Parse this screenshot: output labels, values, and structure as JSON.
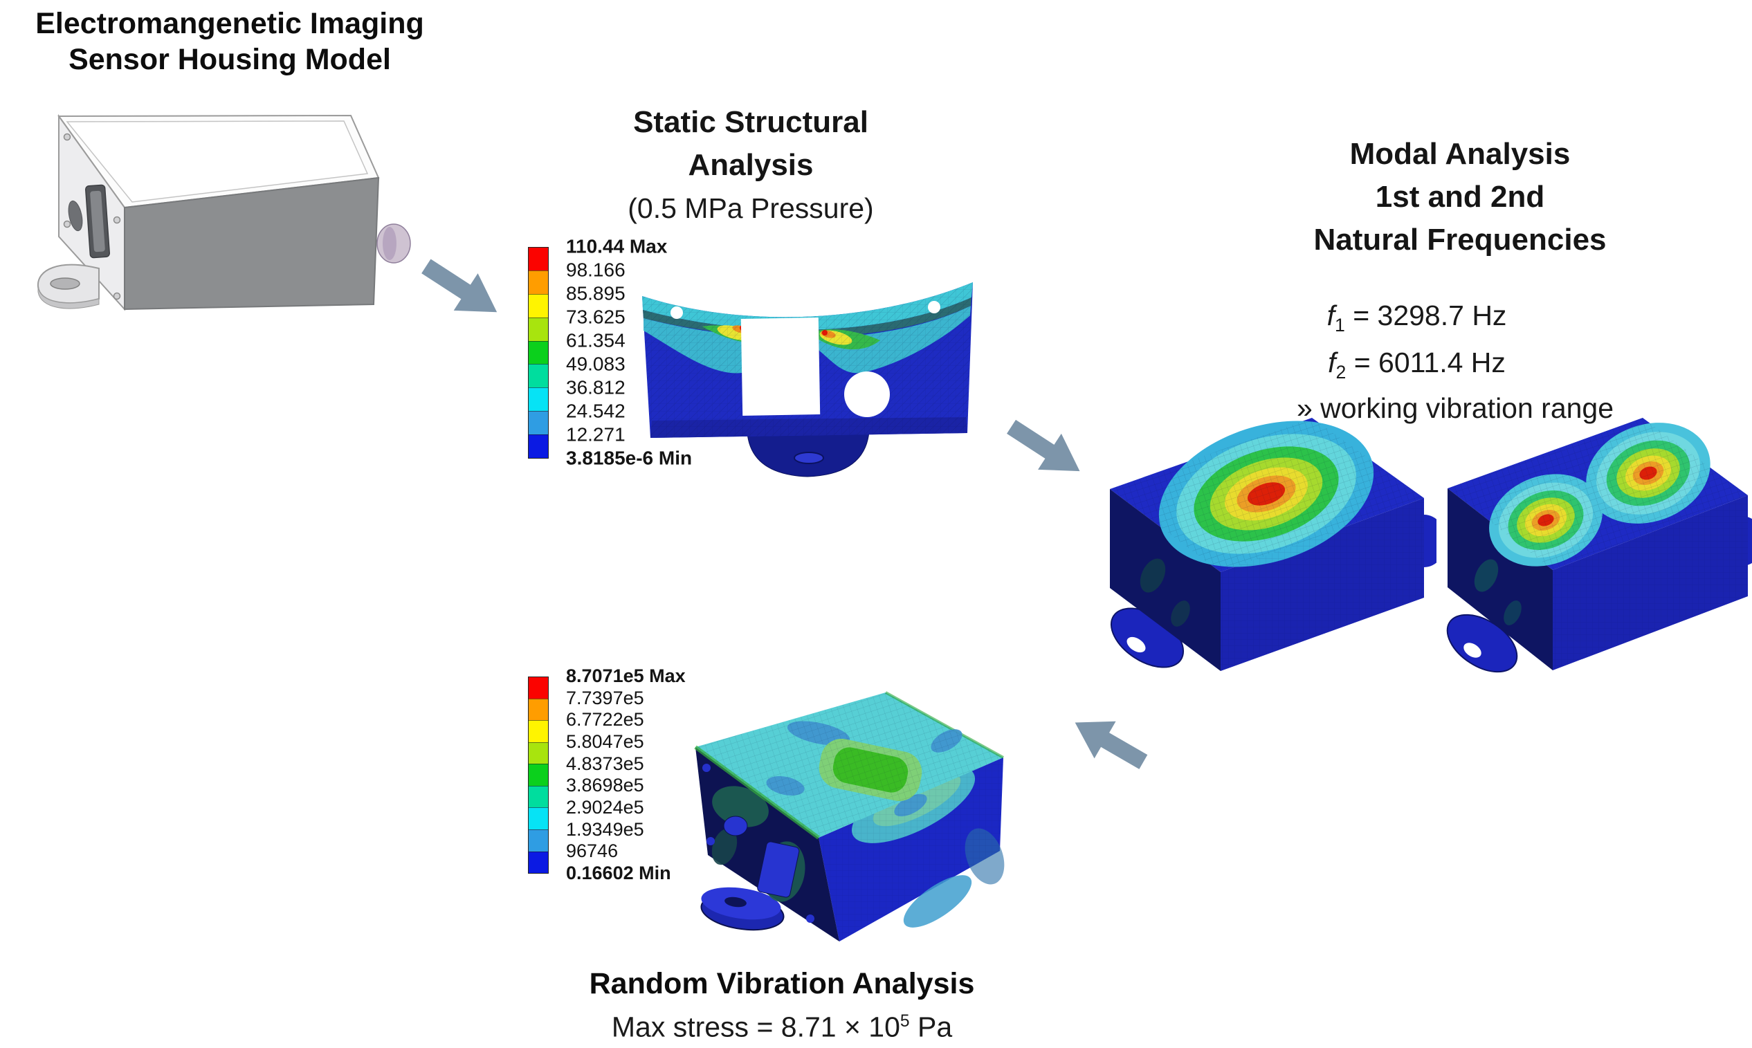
{
  "figure": {
    "model_title": [
      "Electromangenetic Imaging",
      "Sensor Housing Model"
    ]
  },
  "static_analysis": {
    "title": [
      "Static Structural",
      "Analysis"
    ],
    "subtitle": "(0.5 MPa Pressure)",
    "legend": [
      "110.44 Max",
      "98.166",
      "85.895",
      "73.625",
      "61.354",
      "49.083",
      "36.812",
      "24.542",
      "12.271",
      "3.8185e-6 Min"
    ]
  },
  "modal_analysis": {
    "title": [
      "Modal Analysis",
      "1st and 2nd",
      "Natural Frequencies"
    ],
    "f1": {
      "symbol": "f",
      "subscript": "1",
      "value": " = 3298.7 Hz"
    },
    "f2": {
      "symbol": "f",
      "subscript": "2",
      "value": " = 6011.4 Hz"
    },
    "note": {
      "bullet": "»",
      "text": " working vibration range"
    }
  },
  "random_vibration": {
    "title": "Random Vibration Analysis",
    "max_stress": {
      "prefix": "Max stress = 8.71 × 10",
      "exponent": "5",
      "suffix": " Pa"
    },
    "legend": [
      "8.7071e5 Max",
      "7.7397e5",
      "6.7722e5",
      "5.8047e5",
      "4.8373e5",
      "3.8698e5",
      "2.9024e5",
      "1.9349e5",
      "96746",
      "0.16602 Min"
    ]
  },
  "colors": {
    "arrow": "#7d95aa",
    "colorbar": [
      "#fb0300",
      "#ff9d00",
      "#fff400",
      "#a8e40e",
      "#0bd01c",
      "#00dd9e",
      "#06e3f5",
      "#2f9de3",
      "#0b1ae3"
    ]
  }
}
